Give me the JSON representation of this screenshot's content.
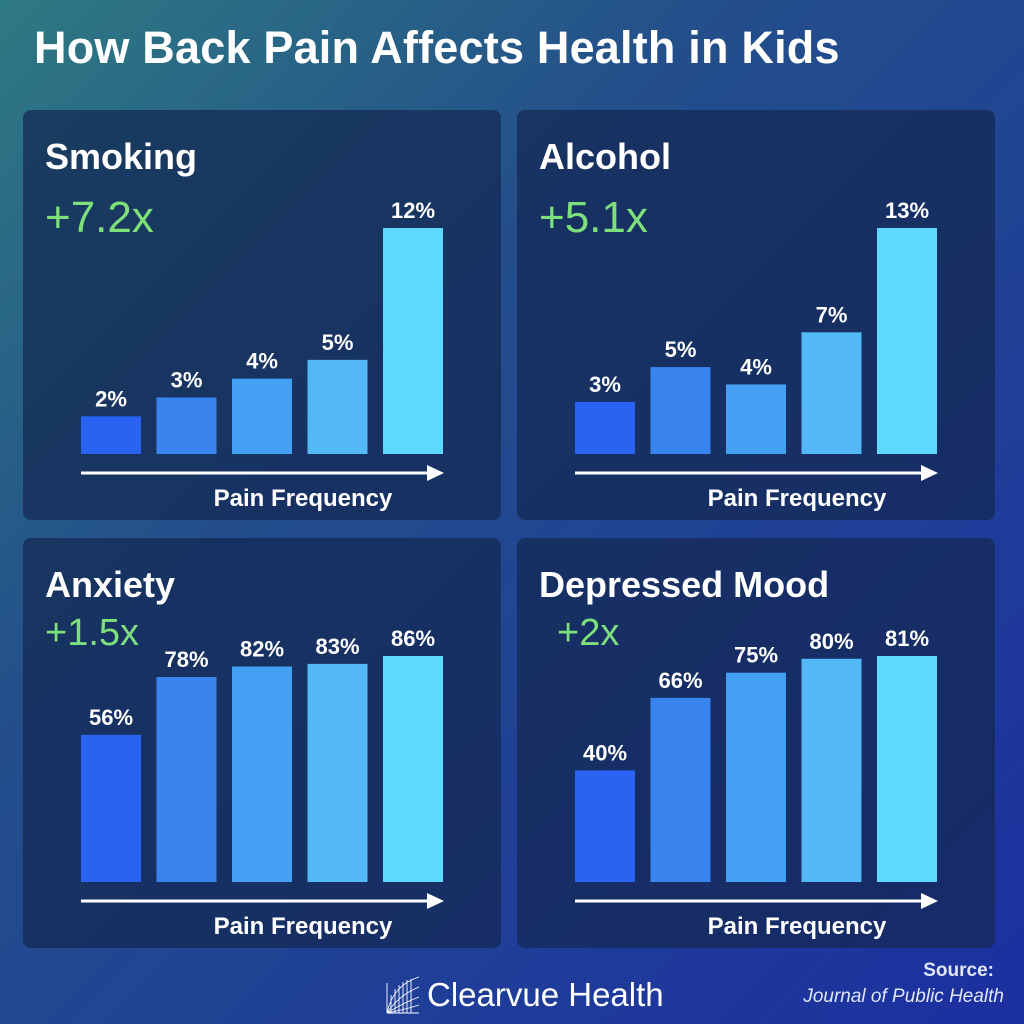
{
  "title": "How Back Pain Affects Health in Kids",
  "colors": {
    "bar_shades": [
      "#2a62f2",
      "#3a84f0",
      "#43a0f2",
      "#52b8f6",
      "#5ed8fc"
    ],
    "multiplier": "#7ee07a",
    "panel_bg": "#142852"
  },
  "chart_data": [
    {
      "type": "bar",
      "title": "Smoking",
      "subtitle": "+7.2x",
      "xlabel": "Pain Frequency",
      "ylabel": "",
      "values": [
        2,
        3,
        4,
        5,
        12
      ],
      "data_labels": [
        "2%",
        "3%",
        "4%",
        "5%",
        "12%"
      ],
      "ylim": [
        0,
        12
      ]
    },
    {
      "type": "bar",
      "title": "Alcohol",
      "subtitle": "+5.1x",
      "xlabel": "Pain Frequency",
      "ylabel": "",
      "values": [
        3,
        5,
        4,
        7,
        13
      ],
      "data_labels": [
        "3%",
        "5%",
        "4%",
        "7%",
        "13%"
      ],
      "ylim": [
        0,
        13
      ]
    },
    {
      "type": "bar",
      "title": "Anxiety",
      "subtitle": "+1.5x",
      "xlabel": "Pain Frequency",
      "ylabel": "",
      "values": [
        56,
        78,
        82,
        83,
        86
      ],
      "data_labels": [
        "56%",
        "78%",
        "82%",
        "83%",
        "86%"
      ],
      "ylim": [
        0,
        86
      ]
    },
    {
      "type": "bar",
      "title": "Depressed Mood",
      "subtitle": "+2x",
      "xlabel": "Pain Frequency",
      "ylabel": "",
      "values": [
        40,
        66,
        75,
        80,
        81
      ],
      "data_labels": [
        "40%",
        "66%",
        "75%",
        "80%",
        "81%"
      ],
      "ylim": [
        0,
        81
      ]
    }
  ],
  "footer": {
    "brand": "Clearvue Health",
    "source_label": "Source:",
    "source_name": "Journal of Public Health"
  }
}
